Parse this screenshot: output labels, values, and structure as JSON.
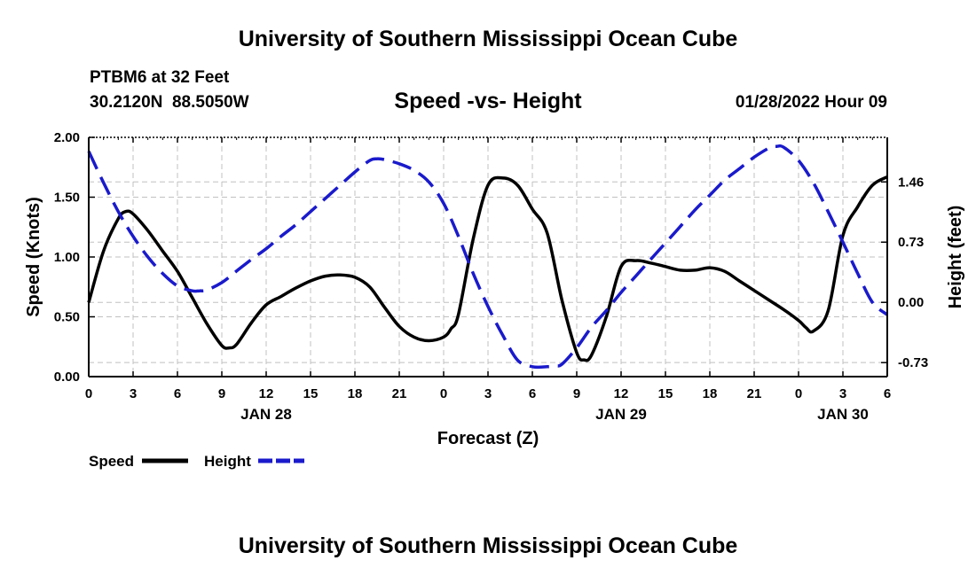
{
  "header": {
    "title": "University of Southern Mississippi Ocean Cube",
    "station": "PTBM6 at 32 Feet",
    "coords": "30.2120N  88.5050W",
    "subtitle": "Speed -vs- Height",
    "datetime": "01/28/2022 Hour 09"
  },
  "footer": {
    "title": "University of Southern Mississippi Ocean Cube"
  },
  "legend": {
    "speed_label": "Speed",
    "height_label": "Height"
  },
  "colors": {
    "speed": "#000000",
    "height": "#1a1acc",
    "grid": "#c0c0c0"
  },
  "chart_data": {
    "type": "line",
    "xlabel": "Forecast (Z)",
    "ylabel_left": "Speed (Knots)",
    "ylabel_right": "Height (feet)",
    "x_unit": "hours from 00Z Jan 28",
    "xlim": [
      0,
      54
    ],
    "ylim_left": [
      0,
      2.0
    ],
    "ylim_right": [
      -0.9,
      2.0
    ],
    "x_ticks": [
      0,
      3,
      6,
      9,
      12,
      15,
      18,
      21,
      24,
      27,
      30,
      33,
      36,
      39,
      42,
      45,
      48,
      51,
      54
    ],
    "x_tick_labels": [
      "0",
      "3",
      "6",
      "9",
      "12",
      "15",
      "18",
      "21",
      "0",
      "3",
      "6",
      "9",
      "12",
      "15",
      "18",
      "21",
      "0",
      "3",
      "6"
    ],
    "y_left_ticks": [
      "0.00",
      "0.50",
      "1.00",
      "1.50",
      "2.00"
    ],
    "y_right_ticks": [
      "-0.73",
      "0.00",
      "0.73",
      "1.46"
    ],
    "y_right_tick_values": [
      -0.73,
      0.0,
      0.73,
      1.46
    ],
    "date_labels": [
      {
        "x": 12,
        "label": "JAN 28"
      },
      {
        "x": 36,
        "label": "JAN 29"
      },
      {
        "x": 51,
        "label": "JAN 30"
      }
    ],
    "series": [
      {
        "name": "Speed",
        "axis": "left",
        "style": "solid",
        "x": [
          0,
          1,
          2,
          2.5,
          3,
          4,
          5,
          6,
          7,
          8,
          9,
          9.5,
          10,
          11,
          12,
          13,
          14,
          15,
          16,
          17,
          18,
          19,
          20,
          21,
          22,
          23,
          24,
          24.5,
          25,
          26,
          27,
          28,
          29,
          30,
          31,
          32,
          33,
          33.5,
          34,
          35,
          36,
          37,
          38,
          39,
          40,
          41,
          42,
          43,
          44,
          45,
          46,
          47,
          48,
          48.5,
          49,
          50,
          51,
          52,
          53,
          54
        ],
        "values": [
          0.62,
          1.05,
          1.32,
          1.38,
          1.36,
          1.22,
          1.05,
          0.88,
          0.66,
          0.44,
          0.26,
          0.24,
          0.27,
          0.45,
          0.6,
          0.67,
          0.74,
          0.8,
          0.84,
          0.85,
          0.83,
          0.75,
          0.58,
          0.42,
          0.33,
          0.3,
          0.33,
          0.4,
          0.52,
          1.15,
          1.6,
          1.66,
          1.6,
          1.4,
          1.2,
          0.64,
          0.2,
          0.14,
          0.18,
          0.5,
          0.92,
          0.97,
          0.95,
          0.92,
          0.89,
          0.89,
          0.91,
          0.88,
          0.8,
          0.72,
          0.64,
          0.56,
          0.47,
          0.41,
          0.38,
          0.55,
          1.18,
          1.42,
          1.6,
          1.67
        ]
      },
      {
        "name": "Height",
        "axis": "right",
        "style": "dashed",
        "x": [
          0,
          1,
          2,
          3,
          4,
          5,
          6,
          7,
          7.5,
          8,
          9,
          10,
          11,
          12,
          13,
          14,
          15,
          16,
          17,
          18,
          19,
          19.5,
          20,
          21,
          22,
          23,
          24,
          25,
          26,
          27,
          28,
          29,
          30,
          31,
          31.5,
          32,
          33,
          34,
          35,
          36,
          37,
          38,
          39,
          40,
          41,
          42,
          43,
          44,
          45,
          46,
          46.5,
          47,
          48,
          49,
          50,
          51,
          52,
          53,
          54
        ],
        "values": [
          1.83,
          1.45,
          1.1,
          0.8,
          0.55,
          0.35,
          0.2,
          0.14,
          0.14,
          0.15,
          0.24,
          0.38,
          0.52,
          0.65,
          0.8,
          0.94,
          1.1,
          1.26,
          1.42,
          1.58,
          1.72,
          1.74,
          1.73,
          1.68,
          1.6,
          1.46,
          1.2,
          0.8,
          0.35,
          -0.05,
          -0.4,
          -0.7,
          -0.78,
          -0.78,
          -0.77,
          -0.75,
          -0.55,
          -0.3,
          -0.1,
          0.12,
          0.32,
          0.52,
          0.72,
          0.92,
          1.12,
          1.3,
          1.48,
          1.62,
          1.76,
          1.87,
          1.89,
          1.88,
          1.72,
          1.45,
          1.1,
          0.73,
          0.35,
          0.0,
          -0.15
        ]
      }
    ]
  }
}
